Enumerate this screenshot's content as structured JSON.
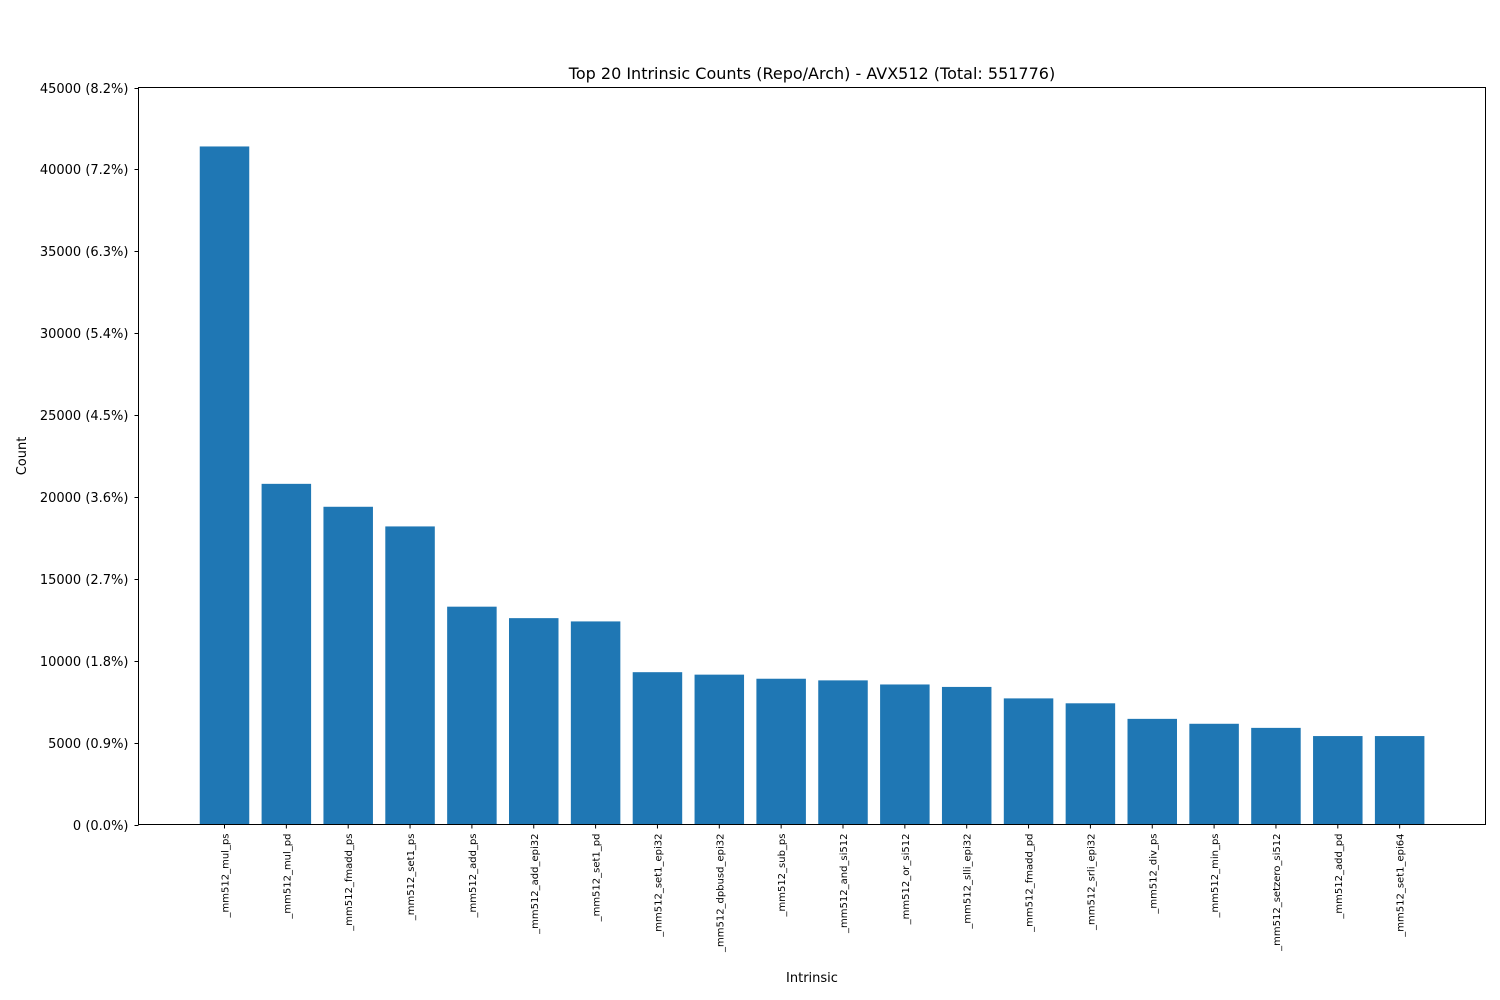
{
  "chart_data": {
    "type": "bar",
    "title": "Top 20 Intrinsic Counts (Repo/Arch) - AVX512 (Total: 551776)",
    "xlabel": "Intrinsic",
    "ylabel": "Count",
    "ylim": [
      0,
      45000
    ],
    "bar_color": "#1f77b4",
    "grid": false,
    "legend": "none",
    "y_ticks": [
      {
        "value": 0,
        "label": "0 (0.0%)"
      },
      {
        "value": 5000,
        "label": "5000 (0.9%)"
      },
      {
        "value": 10000,
        "label": "10000 (1.8%)"
      },
      {
        "value": 15000,
        "label": "15000 (2.7%)"
      },
      {
        "value": 20000,
        "label": "20000 (3.6%)"
      },
      {
        "value": 25000,
        "label": "25000 (4.5%)"
      },
      {
        "value": 30000,
        "label": "30000 (5.4%)"
      },
      {
        "value": 35000,
        "label": "35000 (6.3%)"
      },
      {
        "value": 40000,
        "label": "40000 (7.2%)"
      },
      {
        "value": 45000,
        "label": "45000 (8.2%)"
      }
    ],
    "categories": [
      "_mm512_mul_ps",
      "_mm512_mul_pd",
      "_mm512_fmadd_ps",
      "_mm512_set1_ps",
      "_mm512_add_ps",
      "_mm512_add_epi32",
      "_mm512_set1_pd",
      "_mm512_set1_epi32",
      "_mm512_dpbusd_epi32",
      "_mm512_sub_ps",
      "_mm512_and_si512",
      "_mm512_or_si512",
      "_mm512_slli_epi32",
      "_mm512_fmadd_pd",
      "_mm512_srli_epi32",
      "_mm512_div_ps",
      "_mm512_min_ps",
      "_mm512_setzero_si512",
      "_mm512_add_pd",
      "_mm512_set1_epi64"
    ],
    "values": [
      41400,
      20800,
      19400,
      18200,
      13300,
      12600,
      12400,
      9300,
      9150,
      8900,
      8800,
      8550,
      8400,
      7700,
      7400,
      6450,
      6150,
      5900,
      5400,
      5400
    ]
  }
}
